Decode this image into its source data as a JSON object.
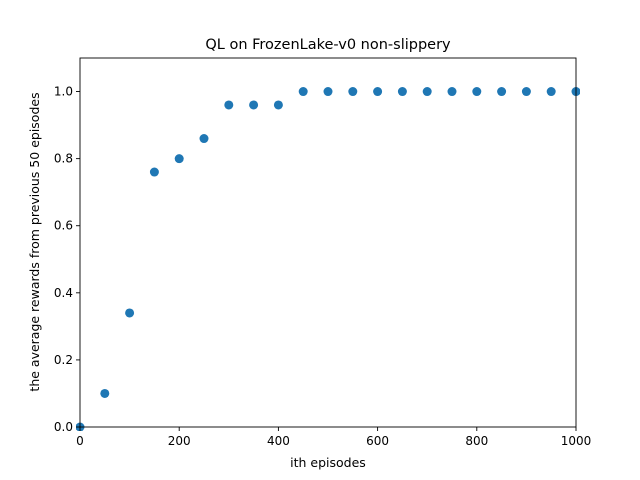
{
  "chart_data": {
    "type": "scatter",
    "title": "QL on FrozenLake-v0 non-slippery",
    "xlabel": "ith episodes",
    "ylabel": "the average rewards from previous 50 episodes",
    "xlim": [
      0,
      1000
    ],
    "ylim": [
      0,
      1.1
    ],
    "xticks": [
      0,
      200,
      400,
      600,
      800,
      1000
    ],
    "yticks": [
      0.0,
      0.2,
      0.4,
      0.6,
      0.8,
      1.0
    ],
    "xtick_labels": [
      "0",
      "200",
      "400",
      "600",
      "800",
      "1000"
    ],
    "ytick_labels": [
      "0.0",
      "0.2",
      "0.4",
      "0.6",
      "0.8",
      "1.0"
    ],
    "grid": false,
    "marker_color": "#1f77b4",
    "series": [
      {
        "x": [
          0,
          50,
          100,
          150,
          200,
          250,
          300,
          350,
          400,
          450,
          500,
          550,
          600,
          650,
          700,
          750,
          800,
          850,
          900,
          950,
          1000
        ],
        "y": [
          0.0,
          0.1,
          0.34,
          0.76,
          0.8,
          0.86,
          0.96,
          0.96,
          0.96,
          1.0,
          1.0,
          1.0,
          1.0,
          1.0,
          1.0,
          1.0,
          1.0,
          1.0,
          1.0,
          1.0,
          1.0
        ]
      }
    ]
  }
}
